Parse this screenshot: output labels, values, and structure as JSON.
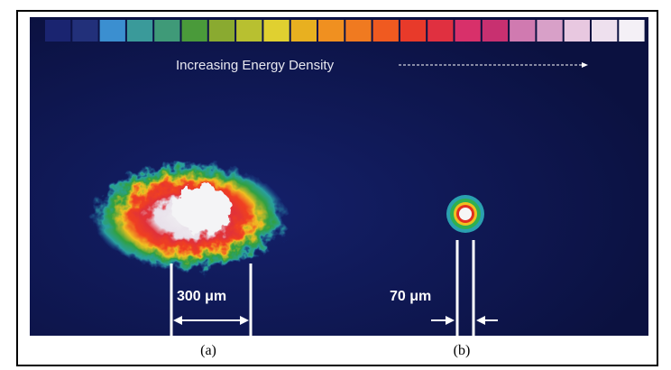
{
  "figure": {
    "caption_text": "Increasing Energy Density",
    "panels": [
      {
        "scale_label": "300 μm",
        "label": "(a)"
      },
      {
        "scale_label": "70 μm",
        "label": "(b)"
      }
    ]
  }
}
